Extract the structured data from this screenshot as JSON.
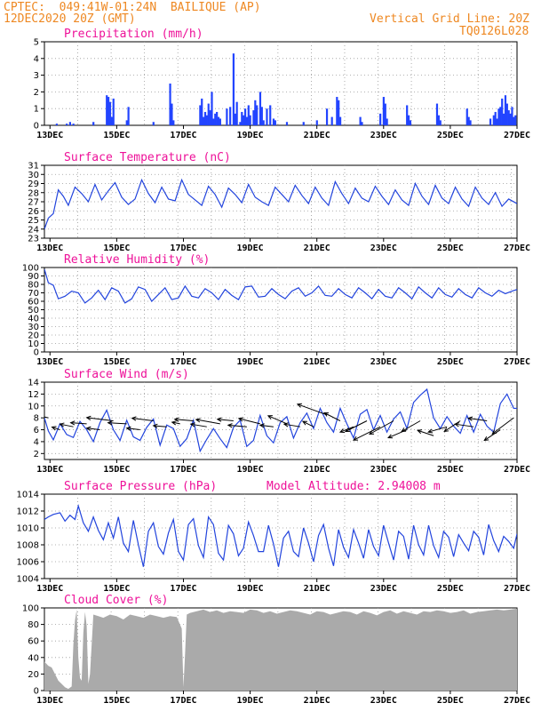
{
  "header": {
    "station_line": "CPTEC:  049:41W-01:24N  BAILIQUE (AP)",
    "date_line": "12DEC2020 20Z (GMT)",
    "grid_note": "Vertical Grid Line: 20Z",
    "model_code": "TQ0126L028"
  },
  "colors": {
    "header": "#ee8822",
    "panel_title": "#ee1199",
    "series_line": "#2244dd",
    "precip_bar": "#2244ff",
    "cloud_fill": "#aaaaaa",
    "wind_arrow": "#000000",
    "grid": "#999999"
  },
  "time_axis": {
    "start_day": 12.833,
    "end_day": 27.0,
    "tick_labels": [
      "13DEC",
      "15DEC",
      "17DEC",
      "19DEC",
      "21DEC",
      "23DEC",
      "25DEC",
      "27DEC"
    ],
    "tick_days": [
      13,
      15,
      17,
      19,
      21,
      23,
      25,
      27
    ],
    "vertical_grid_days": [
      12.833,
      13.833,
      14.833,
      15.833,
      16.833,
      17.833,
      18.833,
      19.833,
      20.833,
      21.833,
      22.833,
      23.833,
      24.833,
      25.833,
      26.833
    ]
  },
  "chart_data": [
    {
      "type": "bar",
      "title": "Precipitation (mm/h)",
      "ylim": [
        0,
        5
      ],
      "yticks": [
        0,
        1,
        2,
        3,
        4,
        5
      ],
      "grid": true,
      "x_days": [
        13.2,
        13.5,
        13.6,
        13.7,
        14.3,
        14.7,
        14.75,
        14.8,
        14.85,
        14.9,
        15.3,
        15.35,
        16.1,
        16.6,
        16.65,
        16.7,
        17.5,
        17.55,
        17.6,
        17.65,
        17.7,
        17.75,
        17.8,
        17.85,
        17.9,
        17.95,
        18.0,
        18.05,
        18.1,
        18.3,
        18.4,
        18.5,
        18.55,
        18.6,
        18.7,
        18.75,
        18.8,
        18.85,
        18.9,
        18.95,
        19.0,
        19.1,
        19.15,
        19.2,
        19.3,
        19.35,
        19.4,
        19.5,
        19.6,
        19.7,
        19.75,
        20.1,
        20.6,
        21.0,
        21.3,
        21.45,
        21.6,
        21.65,
        21.7,
        22.3,
        22.35,
        22.9,
        23.0,
        23.05,
        23.1,
        23.7,
        23.75,
        23.8,
        24.6,
        24.65,
        24.7,
        25.5,
        25.55,
        25.6,
        26.2,
        26.3,
        26.35,
        26.4,
        26.45,
        26.5,
        26.55,
        26.6,
        26.65,
        26.7,
        26.75,
        26.8,
        26.85,
        26.9,
        26.95
      ],
      "values": [
        0.1,
        0.1,
        0.2,
        0.1,
        0.2,
        1.8,
        1.7,
        1.4,
        0.5,
        1.6,
        0.3,
        1.1,
        0.2,
        2.5,
        1.3,
        0.3,
        1.2,
        1.6,
        0.5,
        0.8,
        0.6,
        1.3,
        0.9,
        2.0,
        0.4,
        0.7,
        0.8,
        0.5,
        0.4,
        1.0,
        1.1,
        4.3,
        0.7,
        1.4,
        0.2,
        0.8,
        0.6,
        1.0,
        0.5,
        1.2,
        0.6,
        0.9,
        1.5,
        1.2,
        2.0,
        1.1,
        0.3,
        1.0,
        1.2,
        0.4,
        0.3,
        0.2,
        0.2,
        0.3,
        1.0,
        0.5,
        1.7,
        1.5,
        0.5,
        0.5,
        0.2,
        0.7,
        1.7,
        1.3,
        0.4,
        1.2,
        0.6,
        0.3,
        1.3,
        0.6,
        0.3,
        1.0,
        0.5,
        0.3,
        0.4,
        0.6,
        0.8,
        0.4,
        1.0,
        1.1,
        1.6,
        0.7,
        1.8,
        1.3,
        0.9,
        0.7,
        1.1,
        0.5,
        0.6
      ]
    },
    {
      "type": "line",
      "title": "Surface Temperature (nC)",
      "ylim": [
        23,
        31
      ],
      "yticks": [
        23,
        24,
        25,
        26,
        27,
        28,
        29,
        30,
        31
      ],
      "grid": true,
      "x_days": [
        12.833,
        12.95,
        13.1,
        13.25,
        13.4,
        13.55,
        13.75,
        13.95,
        14.15,
        14.35,
        14.55,
        14.75,
        14.95,
        15.15,
        15.35,
        15.55,
        15.75,
        15.95,
        16.15,
        16.35,
        16.55,
        16.75,
        16.95,
        17.15,
        17.35,
        17.55,
        17.75,
        17.95,
        18.15,
        18.35,
        18.55,
        18.75,
        18.95,
        19.15,
        19.35,
        19.55,
        19.75,
        19.95,
        20.15,
        20.35,
        20.55,
        20.75,
        20.95,
        21.15,
        21.35,
        21.55,
        21.75,
        21.95,
        22.15,
        22.35,
        22.55,
        22.75,
        22.95,
        23.15,
        23.35,
        23.55,
        23.75,
        23.95,
        24.15,
        24.35,
        24.55,
        24.75,
        24.95,
        25.15,
        25.35,
        25.55,
        25.75,
        25.95,
        26.15,
        26.35,
        26.55,
        26.75,
        27.0
      ],
      "values": [
        24.0,
        25.2,
        25.7,
        28.3,
        27.6,
        26.6,
        28.6,
        27.9,
        27.0,
        28.9,
        27.2,
        28.2,
        29.1,
        27.5,
        26.7,
        27.3,
        29.4,
        27.9,
        26.9,
        28.6,
        27.3,
        27.1,
        29.4,
        27.8,
        27.2,
        26.6,
        28.7,
        27.8,
        26.4,
        28.5,
        27.8,
        26.9,
        28.9,
        27.5,
        27.0,
        26.6,
        28.6,
        27.8,
        27.0,
        28.8,
        27.7,
        26.8,
        28.6,
        27.4,
        26.6,
        29.2,
        27.9,
        26.8,
        28.5,
        27.4,
        27.0,
        28.7,
        27.6,
        26.7,
        28.3,
        27.2,
        26.6,
        29.0,
        27.6,
        26.7,
        28.8,
        27.4,
        26.8,
        28.6,
        27.3,
        26.5,
        28.6,
        27.4,
        26.7,
        28.0,
        26.5,
        27.3,
        26.8
      ]
    },
    {
      "type": "line",
      "title": "Relative Humidity (%)",
      "ylim": [
        0,
        100
      ],
      "yticks": [
        0,
        10,
        20,
        30,
        40,
        50,
        60,
        70,
        80,
        90,
        100
      ],
      "grid": true,
      "x_days": [
        12.833,
        12.95,
        13.1,
        13.25,
        13.45,
        13.65,
        13.85,
        14.05,
        14.25,
        14.45,
        14.65,
        14.85,
        15.05,
        15.25,
        15.45,
        15.65,
        15.85,
        16.05,
        16.25,
        16.45,
        16.65,
        16.85,
        17.05,
        17.25,
        17.45,
        17.65,
        17.85,
        18.05,
        18.25,
        18.45,
        18.65,
        18.85,
        19.05,
        19.25,
        19.45,
        19.65,
        19.85,
        20.05,
        20.25,
        20.45,
        20.65,
        20.85,
        21.05,
        21.25,
        21.45,
        21.65,
        21.85,
        22.05,
        22.25,
        22.45,
        22.65,
        22.85,
        23.05,
        23.25,
        23.45,
        23.65,
        23.85,
        24.05,
        24.25,
        24.45,
        24.65,
        24.85,
        25.05,
        25.25,
        25.45,
        25.65,
        25.85,
        26.05,
        26.25,
        26.45,
        26.65,
        26.85,
        27.0
      ],
      "values": [
        98,
        82,
        79,
        63,
        66,
        72,
        70,
        58,
        64,
        73,
        62,
        76,
        72,
        58,
        63,
        77,
        74,
        60,
        68,
        76,
        62,
        64,
        78,
        66,
        64,
        75,
        70,
        62,
        74,
        67,
        62,
        77,
        78,
        65,
        66,
        75,
        68,
        63,
        72,
        76,
        66,
        70,
        78,
        67,
        66,
        75,
        68,
        64,
        76,
        70,
        63,
        74,
        66,
        64,
        76,
        70,
        63,
        77,
        70,
        64,
        76,
        68,
        65,
        75,
        68,
        64,
        76,
        70,
        66,
        73,
        69,
        72,
        74
      ]
    },
    {
      "type": "line",
      "title": "Surface Wind (m/s)",
      "ylim": [
        1,
        14
      ],
      "yticks": [
        2,
        4,
        6,
        8,
        10,
        12,
        14
      ],
      "grid": true,
      "x_days": [
        12.833,
        12.95,
        13.1,
        13.3,
        13.5,
        13.7,
        13.9,
        14.1,
        14.3,
        14.5,
        14.7,
        14.9,
        15.1,
        15.3,
        15.5,
        15.7,
        15.9,
        16.1,
        16.3,
        16.5,
        16.7,
        16.9,
        17.1,
        17.3,
        17.5,
        17.7,
        17.9,
        18.1,
        18.3,
        18.5,
        18.7,
        18.9,
        19.1,
        19.3,
        19.5,
        19.7,
        19.9,
        20.1,
        20.3,
        20.5,
        20.7,
        20.9,
        21.1,
        21.3,
        21.5,
        21.7,
        21.9,
        22.1,
        22.3,
        22.5,
        22.7,
        22.9,
        23.1,
        23.3,
        23.5,
        23.7,
        23.9,
        24.1,
        24.3,
        24.5,
        24.7,
        24.9,
        25.1,
        25.3,
        25.5,
        25.7,
        25.9,
        26.1,
        26.3,
        26.5,
        26.7,
        26.9,
        27.0
      ],
      "values": [
        8.0,
        5.8,
        4.3,
        7.0,
        5.2,
        4.7,
        7.4,
        6.0,
        4.0,
        7.2,
        9.3,
        6.0,
        4.2,
        7.6,
        4.8,
        4.2,
        6.4,
        7.8,
        3.4,
        6.8,
        6.2,
        3.2,
        4.5,
        7.6,
        2.4,
        4.4,
        6.2,
        4.5,
        3.0,
        6.4,
        7.6,
        3.2,
        4.2,
        8.4,
        5.0,
        3.8,
        7.2,
        8.2,
        4.6,
        7.2,
        8.8,
        6.2,
        9.6,
        7.2,
        5.6,
        9.6,
        7.0,
        4.6,
        8.6,
        9.4,
        6.0,
        8.4,
        5.6,
        7.8,
        9.0,
        6.2,
        10.6,
        11.8,
        12.8,
        8.0,
        6.2,
        8.2,
        6.6,
        5.4,
        8.4,
        5.6,
        8.6,
        6.6,
        5.6,
        10.4,
        12.0,
        9.6,
        9.6
      ],
      "wind_vectors": {
        "x_days": [
          12.95,
          13.3,
          13.7,
          14.1,
          14.5,
          14.9,
          15.3,
          15.7,
          16.1,
          16.5,
          16.9,
          17.3,
          17.7,
          18.1,
          18.5,
          18.9,
          19.3,
          19.7,
          20.1,
          20.5,
          20.9,
          21.3,
          21.7,
          22.1,
          22.5,
          22.9,
          23.3,
          23.7,
          24.1,
          24.5,
          24.9,
          25.3,
          25.7,
          26.1,
          26.5,
          26.9
        ],
        "speed": [
          8.0,
          6.0,
          6.5,
          7.0,
          6.0,
          7.5,
          7.0,
          6.0,
          7.5,
          6.5,
          7.0,
          7.5,
          6.5,
          7.0,
          7.5,
          6.5,
          7.0,
          6.5,
          7.0,
          6.5,
          6.5,
          8.5,
          7.5,
          6.5,
          7.5,
          6.5,
          7.5,
          6.0,
          7.5,
          5.0,
          6.5,
          7.5,
          6.5,
          7.5,
          6.0,
          8.0
        ],
        "u": [
          -4.5,
          -1.5,
          -2.5,
          -3.0,
          -2.5,
          -5.0,
          -3.5,
          -2.5,
          -4.0,
          -2.5,
          -1.5,
          -3.5,
          -3.0,
          -4.5,
          -3.0,
          -3.5,
          -4.0,
          -2.5,
          -3.5,
          -3.0,
          -2.0,
          -5.5,
          -3.0,
          -2.5,
          -4.0,
          -5.0,
          -4.5,
          -3.5,
          -3.5,
          -3.0,
          -3.5,
          -3.0,
          -3.5,
          -3.5,
          -3.0,
          -4.0
        ],
        "v": [
          1.0,
          0.5,
          0.5,
          0.2,
          0.3,
          0.6,
          0.2,
          0.3,
          0.5,
          0.2,
          0.3,
          0.3,
          0.5,
          0.8,
          0.3,
          0.3,
          1.0,
          0.3,
          1.5,
          0.5,
          1.0,
          2.0,
          1.5,
          -1.0,
          -2.0,
          -2.5,
          -2.5,
          -1.5,
          -2.0,
          1.0,
          -1.0,
          -2.0,
          0.5,
          0.5,
          -2.0,
          -3.0
        ]
      }
    },
    {
      "type": "line",
      "title": "Surface Pressure (hPa)",
      "annotation": "Model Altitude: 2.94008 m",
      "ylim": [
        1004,
        1014
      ],
      "yticks": [
        1004,
        1006,
        1008,
        1010,
        1012,
        1014
      ],
      "grid": true,
      "x_days": [
        12.833,
        12.95,
        13.1,
        13.3,
        13.45,
        13.6,
        13.75,
        13.85,
        14.0,
        14.15,
        14.3,
        14.45,
        14.6,
        14.75,
        14.9,
        15.05,
        15.2,
        15.35,
        15.5,
        15.65,
        15.8,
        15.95,
        16.1,
        16.25,
        16.4,
        16.55,
        16.7,
        16.85,
        17.0,
        17.15,
        17.3,
        17.45,
        17.6,
        17.75,
        17.9,
        18.05,
        18.2,
        18.35,
        18.5,
        18.65,
        18.8,
        18.95,
        19.1,
        19.25,
        19.4,
        19.55,
        19.7,
        19.85,
        20.0,
        20.15,
        20.3,
        20.45,
        20.6,
        20.75,
        20.9,
        21.05,
        21.2,
        21.35,
        21.5,
        21.65,
        21.8,
        21.95,
        22.1,
        22.25,
        22.4,
        22.55,
        22.7,
        22.85,
        23.0,
        23.15,
        23.3,
        23.45,
        23.6,
        23.75,
        23.9,
        24.05,
        24.2,
        24.35,
        24.5,
        24.65,
        24.8,
        24.95,
        25.1,
        25.25,
        25.4,
        25.55,
        25.7,
        25.85,
        26.0,
        26.15,
        26.3,
        26.45,
        26.6,
        26.75,
        26.9,
        27.0
      ],
      "values": [
        1011.0,
        1011.3,
        1011.6,
        1011.8,
        1010.8,
        1011.5,
        1011.0,
        1012.6,
        1010.6,
        1009.6,
        1011.3,
        1009.7,
        1008.6,
        1010.6,
        1008.8,
        1011.3,
        1008.2,
        1007.2,
        1010.9,
        1008.0,
        1005.4,
        1009.6,
        1010.6,
        1007.8,
        1006.9,
        1009.4,
        1011.0,
        1007.2,
        1006.2,
        1010.4,
        1011.1,
        1007.9,
        1006.5,
        1011.3,
        1010.4,
        1007.0,
        1006.2,
        1010.3,
        1009.3,
        1006.7,
        1007.6,
        1010.7,
        1009.1,
        1007.2,
        1007.2,
        1010.3,
        1008.1,
        1005.4,
        1008.8,
        1009.6,
        1007.2,
        1006.6,
        1010.0,
        1008.2,
        1006.0,
        1009.1,
        1010.4,
        1007.6,
        1005.5,
        1009.8,
        1007.7,
        1006.5,
        1009.8,
        1008.2,
        1006.4,
        1009.8,
        1007.8,
        1006.7,
        1010.3,
        1008.2,
        1006.2,
        1009.6,
        1009.0,
        1006.3,
        1010.3,
        1008.0,
        1006.8,
        1010.3,
        1007.9,
        1006.5,
        1009.6,
        1008.9,
        1006.6,
        1009.2,
        1008.2,
        1007.3,
        1009.6,
        1008.9,
        1006.8,
        1010.4,
        1008.5,
        1007.2,
        1009.0,
        1008.4,
        1007.6,
        1009.3
      ]
    },
    {
      "type": "area",
      "title": "Cloud Cover (%)",
      "ylim": [
        0,
        100
      ],
      "yticks": [
        0,
        20,
        40,
        60,
        80,
        100
      ],
      "grid": true,
      "x_days": [
        12.833,
        12.95,
        13.05,
        13.15,
        13.25,
        13.35,
        13.45,
        13.55,
        13.65,
        13.7,
        13.75,
        13.8,
        13.85,
        13.9,
        13.95,
        14.0,
        14.05,
        14.1,
        14.15,
        14.2,
        14.3,
        14.45,
        14.6,
        14.8,
        15.0,
        15.2,
        15.4,
        15.6,
        15.8,
        16.0,
        16.2,
        16.4,
        16.6,
        16.8,
        16.95,
        17.0,
        17.05,
        17.1,
        17.2,
        17.4,
        17.6,
        17.8,
        18.0,
        18.2,
        18.4,
        18.6,
        18.8,
        19.0,
        19.2,
        19.4,
        19.6,
        19.8,
        20.0,
        20.2,
        20.4,
        20.6,
        20.8,
        21.0,
        21.2,
        21.4,
        21.6,
        21.8,
        22.0,
        22.2,
        22.4,
        22.6,
        22.8,
        23.0,
        23.2,
        23.4,
        23.6,
        23.8,
        24.0,
        24.2,
        24.4,
        24.6,
        24.8,
        25.0,
        25.2,
        25.4,
        25.6,
        25.8,
        26.0,
        26.2,
        26.4,
        26.6,
        26.8,
        27.0
      ],
      "values": [
        35,
        30,
        28,
        20,
        12,
        8,
        4,
        2,
        5,
        55,
        85,
        98,
        40,
        15,
        12,
        70,
        95,
        78,
        8,
        20,
        92,
        90,
        88,
        92,
        90,
        86,
        92,
        90,
        88,
        92,
        90,
        88,
        90,
        89,
        75,
        4,
        45,
        92,
        94,
        96,
        98,
        95,
        97,
        94,
        96,
        95,
        94,
        98,
        97,
        94,
        96,
        93,
        95,
        97,
        96,
        94,
        92,
        96,
        95,
        92,
        94,
        96,
        95,
        92,
        96,
        94,
        91,
        95,
        97,
        93,
        96,
        94,
        92,
        96,
        95,
        97,
        96,
        94,
        95,
        97,
        93,
        95,
        96,
        97,
        98,
        97,
        98,
        99
      ]
    }
  ]
}
